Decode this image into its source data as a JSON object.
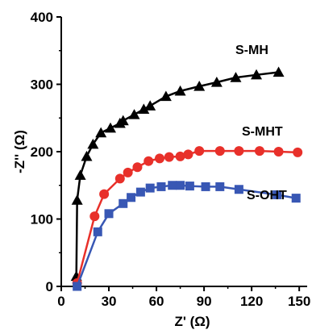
{
  "chart_data": {
    "type": "line",
    "title": "",
    "xlabel": "Z' (Ω)",
    "ylabel": "-Z'' (Ω)",
    "xlim": [
      0,
      155
    ],
    "ylim": [
      0,
      400
    ],
    "x_ticks": [
      0,
      30,
      60,
      90,
      120,
      150
    ],
    "y_ticks": [
      0,
      100,
      200,
      300,
      400
    ],
    "x_tick_labels": [
      "0",
      "30",
      "60",
      "90",
      "120",
      "150"
    ],
    "y_tick_labels": [
      "0",
      "100",
      "200",
      "300",
      "400"
    ],
    "grid": false,
    "legend": "inline labels next to curves",
    "series": [
      {
        "name": "S-MH",
        "color": "#000000",
        "marker": "triangle",
        "x": [
          9.5,
          10,
          12,
          16,
          20,
          25,
          31,
          37,
          39,
          46,
          52,
          56,
          66,
          75,
          87,
          98,
          110,
          123,
          137
        ],
        "y": [
          15,
          128,
          165,
          193,
          211,
          228,
          235,
          242,
          246,
          255,
          263,
          268,
          282,
          290,
          297,
          303,
          310,
          314,
          318
        ]
      },
      {
        "name": "S-MHT",
        "color": "#e8302a",
        "marker": "circle",
        "x": [
          10,
          21,
          27,
          37,
          42,
          48,
          55,
          62,
          68,
          75,
          80,
          87,
          100,
          112,
          125,
          137,
          149
        ],
        "y": [
          5,
          104,
          137,
          160,
          169,
          177,
          186,
          190,
          192,
          193,
          196,
          201,
          201,
          201,
          201,
          200,
          199
        ]
      },
      {
        "name": "S-OHT",
        "color": "#3857b4",
        "marker": "square",
        "x": [
          10,
          23,
          30,
          39,
          44,
          50,
          56,
          63,
          70,
          75,
          81,
          91,
          100,
          112,
          136,
          148
        ],
        "y": [
          0,
          81,
          108,
          123,
          132,
          140,
          146,
          148,
          150,
          150,
          149,
          148,
          148,
          144,
          136,
          131
        ]
      }
    ]
  }
}
